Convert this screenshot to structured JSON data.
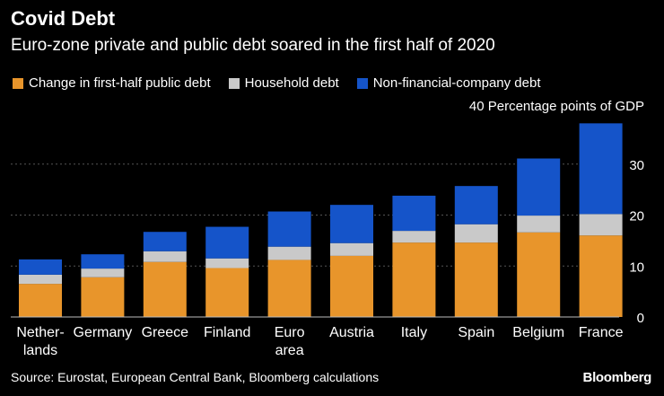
{
  "header": {
    "title": "Covid Debt",
    "subtitle": "Euro-zone private and public debt soared in the first half of 2020",
    "unit_label": "40 Percentage points of GDP"
  },
  "footer": {
    "source": "Source: Eurostat, European Central Bank, Bloomberg calculations",
    "brand": "Bloomberg"
  },
  "colors": {
    "public": "#e8952b",
    "household": "#c9c9c9",
    "nfc": "#1554c9",
    "grid": "#555555",
    "background": "#000000"
  },
  "chart_data": {
    "type": "bar",
    "stacked": true,
    "categories": [
      [
        "Nether-",
        "lands"
      ],
      [
        "Germany"
      ],
      [
        "Greece"
      ],
      [
        "Finland"
      ],
      [
        "Euro",
        "area"
      ],
      [
        "Austria"
      ],
      [
        "Italy"
      ],
      [
        "Spain"
      ],
      [
        "Belgium"
      ],
      [
        "France"
      ]
    ],
    "series": [
      {
        "name": "Change in first-half public debt",
        "color": "#e8952b",
        "values": [
          6.5,
          7.8,
          10.8,
          9.6,
          11.2,
          12.0,
          14.6,
          14.6,
          16.6,
          16.0
        ]
      },
      {
        "name": "Household debt",
        "color": "#c9c9c9",
        "values": [
          1.8,
          1.7,
          2.1,
          1.9,
          2.6,
          2.5,
          2.3,
          3.6,
          3.3,
          4.2
        ]
      },
      {
        "name": "Non-financial-company debt",
        "color": "#1554c9",
        "values": [
          3.0,
          2.8,
          3.8,
          6.2,
          6.9,
          7.5,
          6.9,
          7.5,
          11.2,
          17.8
        ]
      }
    ],
    "ylim": [
      0,
      40
    ],
    "yticks": [
      0,
      10,
      20,
      30
    ],
    "ylabel": "Percentage points of GDP",
    "grid": true,
    "legend": "top-left"
  }
}
